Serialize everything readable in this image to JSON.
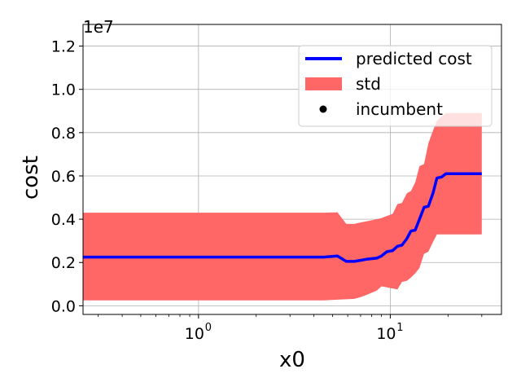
{
  "chart_data": {
    "type": "line",
    "title": "",
    "xlabel": "x0",
    "ylabel": "cost",
    "x_scale": "log",
    "xlim": [
      0.25,
      38
    ],
    "ylim": [
      -400000,
      13000000
    ],
    "y_offset_label": "1e7",
    "x_ticks": [
      {
        "value": 1,
        "label": "10",
        "exp": "0"
      },
      {
        "value": 10,
        "label": "10",
        "exp": "1"
      }
    ],
    "y_ticks": [
      {
        "value": 0,
        "label": "0.0"
      },
      {
        "value": 2000000,
        "label": "0.2"
      },
      {
        "value": 4000000,
        "label": "0.4"
      },
      {
        "value": 6000000,
        "label": "0.6"
      },
      {
        "value": 8000000,
        "label": "0.8"
      },
      {
        "value": 10000000,
        "label": "1.0"
      },
      {
        "value": 12000000,
        "label": "1.2"
      }
    ],
    "grid": true,
    "legend_position": "upper right",
    "legend": {
      "predicted": "predicted cost",
      "std": "std",
      "incumbent": "incumbent"
    },
    "colors": {
      "predicted": "#0000ff",
      "std": "#ff6666",
      "incumbent": "#000000"
    },
    "x": [
      0.25,
      4.5,
      5.3,
      5.9,
      6.5,
      7.0,
      7.5,
      8.5,
      9.0,
      9.6,
      10.3,
      10.9,
      11.5,
      12.2,
      12.8,
      13.5,
      14.2,
      15.0,
      15.8,
      16.7,
      17.5,
      18.5,
      19.5,
      30.0
    ],
    "series": [
      {
        "name": "predicted cost",
        "values": [
          2250000,
          2250000,
          2300000,
          2050000,
          2050000,
          2100000,
          2150000,
          2200000,
          2300000,
          2500000,
          2550000,
          2750000,
          2800000,
          3100000,
          3450000,
          3500000,
          4000000,
          4550000,
          4600000,
          5200000,
          5900000,
          5950000,
          6100000,
          6100000
        ]
      }
    ],
    "std_band": {
      "name": "std",
      "upper": [
        4300000,
        4300000,
        4320000,
        3780000,
        3780000,
        3850000,
        3900000,
        4000000,
        4050000,
        4150000,
        4250000,
        4700000,
        4750000,
        5200000,
        5300000,
        5700000,
        6450000,
        6550000,
        7500000,
        8100000,
        8550000,
        8750000,
        8900000,
        8900000
      ],
      "lower": [
        250000,
        250000,
        280000,
        300000,
        320000,
        400000,
        500000,
        700000,
        900000,
        850000,
        800000,
        750000,
        1100000,
        1150000,
        1300000,
        1500000,
        1750000,
        2400000,
        2500000,
        2950000,
        3300000,
        3300000,
        3300000,
        3300000
      ]
    }
  }
}
